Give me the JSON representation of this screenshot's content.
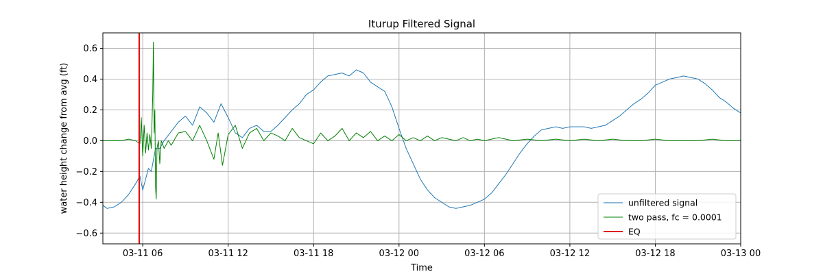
{
  "chart_data": {
    "type": "line",
    "title": "Iturup Filtered Signal",
    "xlabel": "Time",
    "ylabel": "water height change from avg (ft)",
    "x_unit": "hours",
    "xlim": [
      3.2,
      48.0
    ],
    "ylim": [
      -0.67,
      0.7
    ],
    "x_ticks": [
      {
        "value": 6,
        "label": "03-11 06"
      },
      {
        "value": 12,
        "label": "03-11 12"
      },
      {
        "value": 18,
        "label": "03-11 18"
      },
      {
        "value": 24,
        "label": "03-12 00"
      },
      {
        "value": 30,
        "label": "03-12 06"
      },
      {
        "value": 36,
        "label": "03-12 12"
      },
      {
        "value": 42,
        "label": "03-12 18"
      },
      {
        "value": 48,
        "label": "03-13 00"
      }
    ],
    "y_ticks": [
      {
        "value": 0.6,
        "label": "0.6"
      },
      {
        "value": 0.4,
        "label": "0.4"
      },
      {
        "value": 0.2,
        "label": "0.2"
      },
      {
        "value": 0.0,
        "label": "0.0"
      },
      {
        "value": -0.2,
        "label": "−0.2"
      },
      {
        "value": -0.4,
        "label": "−0.4"
      },
      {
        "value": -0.6,
        "label": "−0.6"
      }
    ],
    "grid": true,
    "legend_position": "lower-right",
    "series": [
      {
        "name": "unfiltered signal",
        "color": "#1f77b4",
        "x": [
          3.2,
          3.5,
          4.0,
          4.5,
          5.0,
          5.5,
          5.8,
          6.0,
          6.2,
          6.4,
          6.6,
          6.9,
          7.2,
          7.5,
          8.0,
          8.5,
          9.0,
          9.5,
          10.0,
          10.5,
          11.0,
          11.5,
          12.0,
          12.5,
          13.0,
          13.5,
          14.0,
          14.5,
          15.0,
          15.5,
          16.0,
          16.5,
          17.0,
          17.5,
          18.0,
          18.5,
          19.0,
          19.5,
          20.0,
          20.5,
          21.0,
          21.5,
          22.0,
          22.5,
          23.0,
          23.5,
          24.0,
          24.5,
          25.0,
          25.5,
          26.0,
          26.5,
          27.0,
          27.5,
          28.0,
          28.5,
          29.0,
          29.5,
          30.0,
          30.5,
          31.0,
          31.5,
          32.0,
          32.5,
          33.0,
          33.5,
          34.0,
          34.5,
          35.0,
          35.5,
          36.0,
          36.5,
          37.0,
          37.5,
          38.0,
          38.5,
          39.0,
          39.5,
          40.0,
          40.5,
          41.0,
          41.5,
          42.0,
          42.5,
          43.0,
          43.5,
          44.0,
          44.5,
          45.0,
          45.5,
          46.0,
          46.5,
          47.0,
          47.5,
          48.0
        ],
        "y": [
          -0.42,
          -0.44,
          -0.43,
          -0.4,
          -0.35,
          -0.28,
          -0.23,
          -0.32,
          -0.25,
          -0.18,
          -0.2,
          -0.05,
          -0.05,
          0.0,
          0.06,
          0.12,
          0.16,
          0.1,
          0.22,
          0.18,
          0.12,
          0.24,
          0.15,
          0.05,
          0.02,
          0.08,
          0.1,
          0.06,
          0.06,
          0.1,
          0.15,
          0.2,
          0.24,
          0.3,
          0.33,
          0.38,
          0.42,
          0.43,
          0.44,
          0.42,
          0.46,
          0.44,
          0.38,
          0.35,
          0.32,
          0.22,
          0.08,
          -0.05,
          -0.15,
          -0.25,
          -0.32,
          -0.37,
          -0.4,
          -0.43,
          -0.44,
          -0.43,
          -0.42,
          -0.4,
          -0.38,
          -0.34,
          -0.28,
          -0.22,
          -0.15,
          -0.08,
          -0.02,
          0.03,
          0.07,
          0.08,
          0.09,
          0.08,
          0.09,
          0.09,
          0.09,
          0.08,
          0.09,
          0.1,
          0.13,
          0.16,
          0.2,
          0.24,
          0.27,
          0.31,
          0.36,
          0.38,
          0.4,
          0.41,
          0.42,
          0.41,
          0.4,
          0.37,
          0.33,
          0.28,
          0.25,
          0.21,
          0.18
        ]
      },
      {
        "name": "two pass, fc = 0.0001",
        "color": "#008000",
        "x": [
          3.2,
          4.0,
          4.5,
          5.0,
          5.5,
          5.8,
          5.9,
          6.0,
          6.1,
          6.2,
          6.3,
          6.4,
          6.5,
          6.6,
          6.7,
          6.75,
          6.8,
          6.85,
          6.9,
          6.95,
          7.0,
          7.1,
          7.2,
          7.3,
          7.5,
          7.8,
          8.0,
          8.5,
          9.0,
          9.5,
          10.0,
          10.5,
          11.0,
          11.3,
          11.6,
          12.0,
          12.5,
          13.0,
          13.5,
          14.0,
          14.5,
          15.0,
          15.5,
          16.0,
          16.5,
          17.0,
          17.5,
          18.0,
          18.5,
          19.0,
          19.5,
          20.0,
          20.5,
          21.0,
          21.5,
          22.0,
          22.5,
          23.0,
          23.5,
          24.0,
          24.5,
          25.0,
          25.5,
          26.0,
          26.5,
          27.0,
          27.5,
          28.0,
          28.5,
          29.0,
          29.5,
          30.0,
          31.0,
          32.0,
          33.0,
          34.0,
          35.0,
          36.0,
          37.0,
          38.0,
          39.0,
          40.0,
          41.0,
          42.0,
          43.0,
          44.0,
          45.0,
          46.0,
          47.0,
          48.0
        ],
        "y": [
          0.0,
          0.0,
          0.0,
          0.01,
          0.0,
          -0.02,
          0.15,
          -0.1,
          0.1,
          -0.08,
          0.05,
          -0.06,
          0.04,
          -0.05,
          0.3,
          0.64,
          0.05,
          0.2,
          -0.3,
          -0.38,
          -0.05,
          0.0,
          -0.15,
          0.0,
          -0.05,
          0.0,
          -0.03,
          0.05,
          0.06,
          0.0,
          0.1,
          0.0,
          -0.12,
          0.05,
          -0.16,
          0.04,
          0.1,
          -0.05,
          0.05,
          0.08,
          0.0,
          0.05,
          0.03,
          0.0,
          0.08,
          0.02,
          0.0,
          -0.02,
          0.05,
          0.0,
          0.03,
          0.08,
          0.0,
          0.05,
          0.02,
          0.06,
          0.0,
          0.03,
          0.0,
          0.04,
          0.0,
          0.02,
          0.0,
          0.03,
          0.0,
          0.02,
          0.01,
          0.0,
          0.02,
          0.0,
          0.01,
          0.0,
          0.02,
          0.0,
          0.01,
          0.0,
          0.01,
          0.0,
          0.01,
          0.0,
          0.01,
          0.0,
          0.0,
          0.01,
          0.0,
          0.0,
          0.0,
          0.01,
          0.0,
          0.0
        ]
      },
      {
        "name": "EQ",
        "color": "#e00000",
        "kind": "vline",
        "x": 5.75
      }
    ]
  }
}
